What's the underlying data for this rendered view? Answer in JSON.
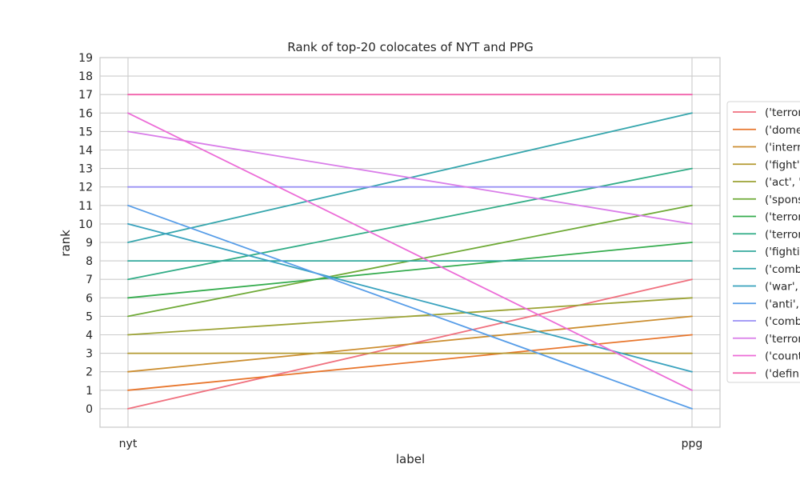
{
  "chart_data": {
    "type": "line",
    "title": "Rank of top-20 colocates of NYT and PPG",
    "xlabel": "label",
    "ylabel": "rank",
    "categories": [
      "nyt",
      "ppg"
    ],
    "ylim": [
      -1,
      19
    ],
    "yticks": [
      0,
      1,
      2,
      3,
      4,
      5,
      6,
      7,
      8,
      9,
      10,
      11,
      12,
      13,
      14,
      15,
      16,
      17,
      18,
      19
    ],
    "grid": true,
    "legend_position": "right",
    "series": [
      {
        "name": "('terror",
        "color": "#f0717f",
        "values": [
          0,
          7
        ]
      },
      {
        "name": "('dome",
        "color": "#e8762d",
        "values": [
          1,
          4
        ]
      },
      {
        "name": "('intern",
        "color": "#cc8e30",
        "values": [
          2,
          5
        ]
      },
      {
        "name": "('fight',",
        "color": "#b39a32",
        "values": [
          3,
          3
        ]
      },
      {
        "name": "('act', '",
        "color": "#9ca335",
        "values": [
          4,
          6
        ]
      },
      {
        "name": "('spons",
        "color": "#6faa37",
        "values": [
          5,
          11
        ]
      },
      {
        "name": "('terror",
        "color": "#35ac4e",
        "values": [
          6,
          9
        ]
      },
      {
        "name": "('terror",
        "color": "#32ad87",
        "values": [
          7,
          13
        ]
      },
      {
        "name": "('fightir",
        "color": "#34aa9d",
        "values": [
          8,
          8
        ]
      },
      {
        "name": "('comb",
        "color": "#36a6ad",
        "values": [
          9,
          16
        ]
      },
      {
        "name": "('war',",
        "color": "#39a2be",
        "values": [
          10,
          2
        ]
      },
      {
        "name": "('anti',",
        "color": "#579de8",
        "values": [
          11,
          0
        ]
      },
      {
        "name": "('comb",
        "color": "#9990f4",
        "values": [
          12,
          12
        ]
      },
      {
        "name": "('terror",
        "color": "#d97de9",
        "values": [
          15,
          10
        ]
      },
      {
        "name": "('count",
        "color": "#ec6cd7",
        "values": [
          16,
          1
        ]
      },
      {
        "name": "('defini",
        "color": "#f262ab",
        "values": [
          17,
          17
        ]
      }
    ]
  }
}
